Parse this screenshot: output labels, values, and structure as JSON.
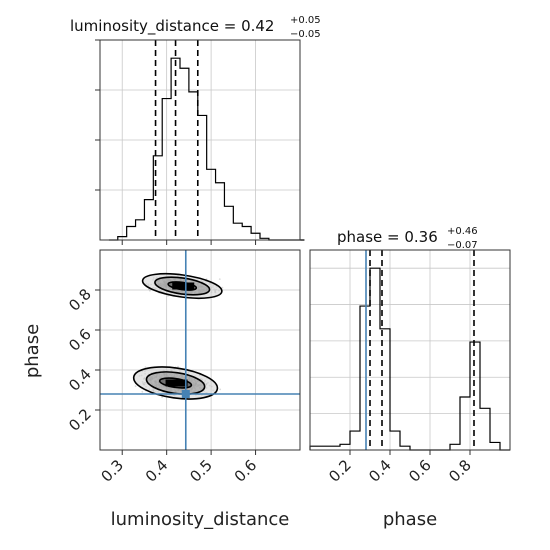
{
  "chart_data": [
    {
      "type": "histogram",
      "panel": "luminosity_distance-marginal",
      "title_param": "luminosity_distance",
      "title_value": "0.42",
      "title_plus": "+0.05",
      "title_minus": "−0.05",
      "xlim": [
        0.25,
        0.7
      ],
      "bin_width": 0.02,
      "bin_edges_start": 0.27,
      "counts": [
        0,
        2,
        8,
        12,
        24,
        50,
        84,
        108,
        102,
        88,
        74,
        42,
        34,
        20,
        10,
        8,
        4,
        1,
        0,
        0,
        0,
        0
      ],
      "quantiles": [
        0.375,
        0.42,
        0.47
      ],
      "grid": true
    },
    {
      "type": "histogram",
      "panel": "phase-marginal",
      "title_param": "phase",
      "title_value": "0.36",
      "title_plus": "+0.46",
      "title_minus": "−0.07",
      "xlim": [
        0.0,
        1.0
      ],
      "bin_width": 0.05,
      "bin_edges_start": 0.0,
      "counts": [
        2,
        2,
        2,
        3,
        10,
        76,
        96,
        64,
        10,
        2,
        0,
        0,
        0,
        0,
        3,
        28,
        57,
        22,
        4,
        0
      ],
      "quantiles": [
        0.3,
        0.36,
        0.82
      ],
      "truth": 0.28,
      "xticks": [
        "0.2",
        "0.4",
        "0.6",
        "0.8"
      ],
      "xlabel": "phase",
      "grid": true
    },
    {
      "type": "contour",
      "panel": "joint-2d",
      "xlim": [
        0.25,
        0.7
      ],
      "ylim": [
        0.0,
        1.0
      ],
      "xlabel": "luminosity_distance",
      "ylabel": "phase",
      "xticks": [
        "0.3",
        "0.4",
        "0.5",
        "0.6"
      ],
      "yticks": [
        "0.2",
        "0.4",
        "0.6",
        "0.8"
      ],
      "truth": {
        "x": 0.443,
        "y": 0.28
      },
      "modes": [
        {
          "name": "upper",
          "center": [
            0.435,
            0.82
          ],
          "contours_data": [
            [
              0.032,
              0.018
            ],
            [
              0.062,
              0.04
            ],
            [
              0.09,
              0.055
            ]
          ]
        },
        {
          "name": "lower",
          "center": [
            0.42,
            0.335
          ],
          "contours_data": [
            [
              0.036,
              0.022
            ],
            [
              0.066,
              0.052
            ],
            [
              0.095,
              0.075
            ]
          ]
        }
      ],
      "colors": {
        "truth": "#4682b4",
        "contour": "#000000",
        "grid": "#c8c8c8"
      },
      "grid": true
    }
  ]
}
